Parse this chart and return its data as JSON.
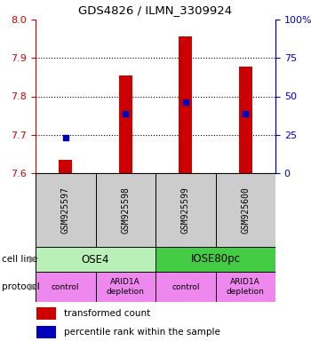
{
  "title": "GDS4826 / ILMN_3309924",
  "samples": [
    "GSM925597",
    "GSM925598",
    "GSM925599",
    "GSM925600"
  ],
  "bar_values": [
    7.635,
    7.855,
    7.955,
    7.878
  ],
  "blue_dot_values": [
    7.693,
    7.754,
    7.784,
    7.754
  ],
  "bar_bottom": 7.6,
  "ylim_left": [
    7.6,
    8.0
  ],
  "ylim_right": [
    0,
    100
  ],
  "left_yticks": [
    7.6,
    7.7,
    7.8,
    7.9,
    8.0
  ],
  "right_yticks": [
    0,
    25,
    50,
    75,
    100
  ],
  "right_ytick_labels": [
    "0",
    "25",
    "50",
    "75",
    "100%"
  ],
  "cell_lines": [
    "OSE4",
    "IOSE80pc"
  ],
  "cell_line_spans": [
    2,
    2
  ],
  "cell_line_colors": [
    "#b8f0b8",
    "#44cc44"
  ],
  "protocols": [
    "control",
    "ARID1A\ndepletion",
    "control",
    "ARID1A\ndepletion"
  ],
  "protocol_color": "#ee88ee",
  "bar_color": "#cc0000",
  "dot_color": "#0000bb",
  "left_axis_color": "#cc0000",
  "right_axis_color": "#0000bb",
  "grid_color": "#000000",
  "sample_box_color": "#cccccc",
  "legend_bar_label": "transformed count",
  "legend_dot_label": "percentile rank within the sample",
  "cell_line_label": "cell line",
  "protocol_label": "protocol",
  "arrow_color": "#888888"
}
